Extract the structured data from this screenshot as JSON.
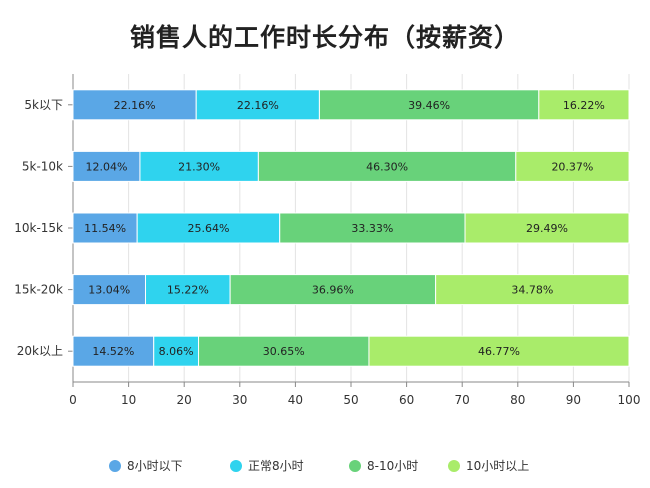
{
  "chart_data": {
    "type": "bar",
    "orientation": "horizontal",
    "stacked": true,
    "title": "销售人的工作时长分布（按薪资）",
    "categories": [
      "5k以下",
      "5k-10k",
      "10k-15k",
      "15k-20k",
      "20k以上"
    ],
    "series": [
      {
        "name": "8小时以下",
        "color": "#5aa7e6",
        "values": [
          22.16,
          12.04,
          11.54,
          13.04,
          14.52
        ]
      },
      {
        "name": "正常8小时",
        "color": "#2fd3ee",
        "values": [
          22.16,
          21.3,
          25.64,
          15.22,
          8.06
        ]
      },
      {
        "name": "8-10小时",
        "color": "#68d27a",
        "values": [
          39.46,
          46.3,
          33.33,
          36.96,
          30.65
        ]
      },
      {
        "name": "10小时以上",
        "color": "#a9ec6a",
        "values": [
          16.22,
          20.37,
          29.49,
          34.78,
          46.77
        ]
      }
    ],
    "xlim": [
      0,
      100
    ],
    "xticks": [
      0,
      10,
      20,
      30,
      40,
      50,
      60,
      70,
      80,
      90,
      100
    ],
    "grid": true,
    "legend_position": "bottom"
  }
}
